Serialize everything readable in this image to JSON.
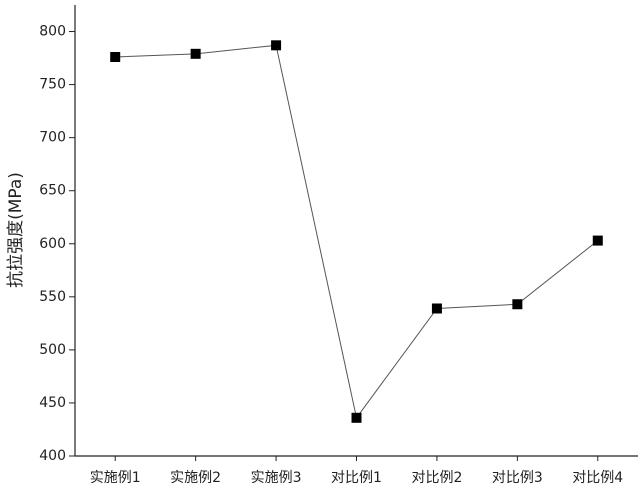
{
  "chart_data": {
    "type": "line",
    "y_label": "抗拉强度(MPa)",
    "categories": [
      "实施例1",
      "实施例2",
      "实施例3",
      "对比例1",
      "对比例2",
      "对比例3",
      "对比例4"
    ],
    "values": [
      776,
      779,
      787,
      436,
      539,
      543,
      603
    ],
    "color": "#000000",
    "line_color": "#555555",
    "ylim": [
      400,
      825
    ],
    "yticks": [
      400,
      450,
      500,
      550,
      600,
      650,
      700,
      750,
      800
    ],
    "grid": false
  }
}
